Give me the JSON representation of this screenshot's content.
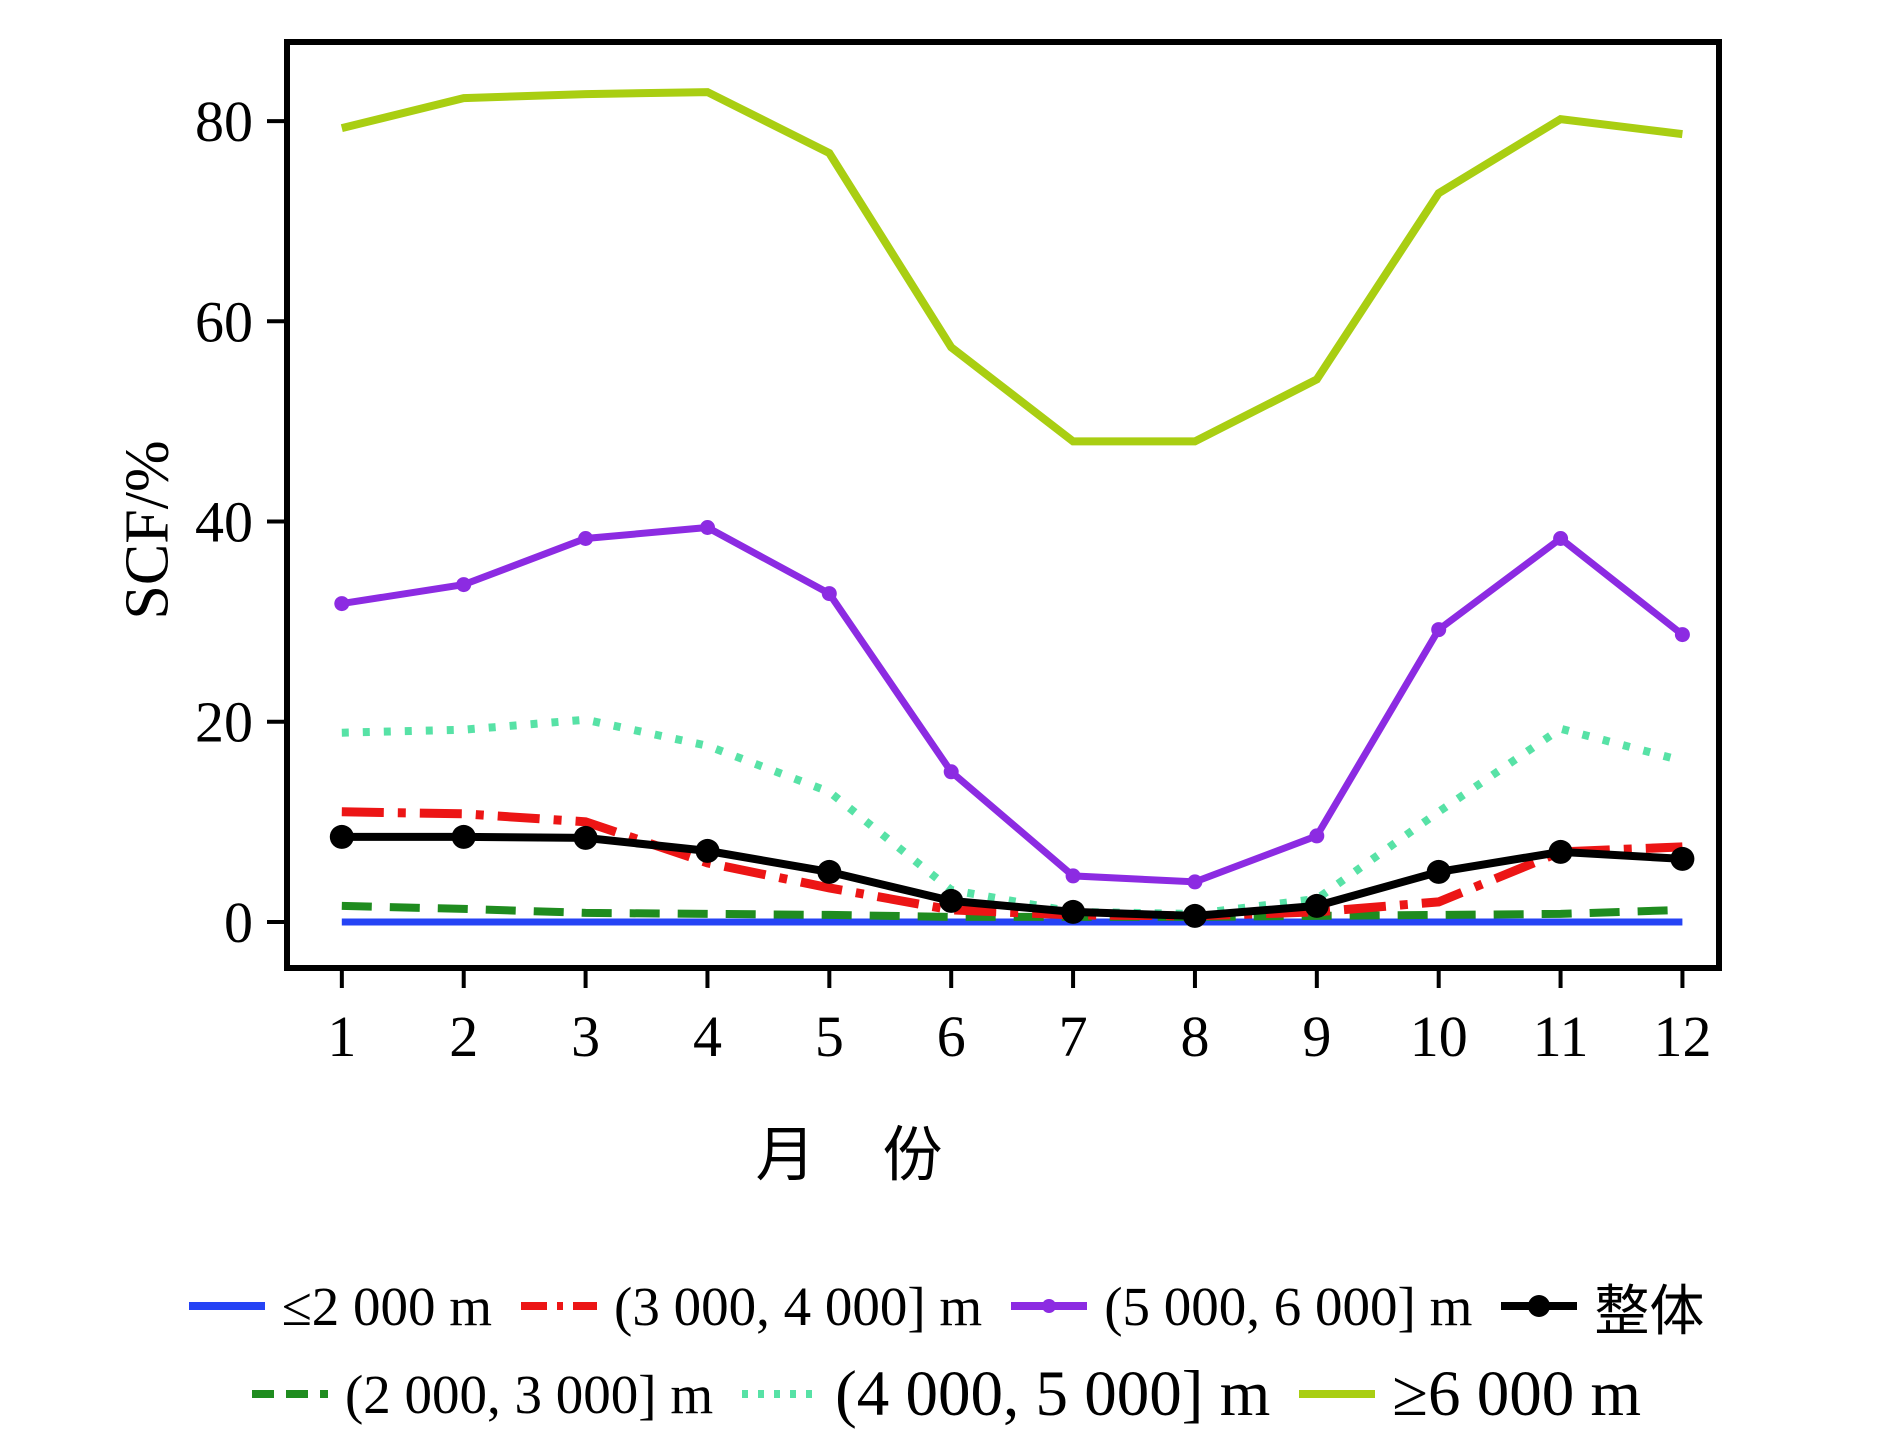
{
  "chart_data": {
    "type": "line",
    "title": "",
    "xlabel": "月 份",
    "ylabel": "SCF/%",
    "x": [
      1,
      2,
      3,
      4,
      5,
      6,
      7,
      8,
      9,
      10,
      11,
      12
    ],
    "x_ticks": [
      1,
      2,
      3,
      4,
      5,
      6,
      7,
      8,
      9,
      10,
      11,
      12
    ],
    "y_ticks": [
      0,
      20,
      40,
      60,
      80
    ],
    "xlim": [
      0.55,
      12.3
    ],
    "ylim": [
      -4.6,
      87.9
    ],
    "grid": false,
    "legend_position": "below-chart, two rows",
    "series": [
      {
        "key": "le-2000m",
        "name": "≤2 000 m",
        "color": "#2543f5",
        "style": "solid",
        "marker": "none",
        "values": [
          0,
          0,
          0,
          0,
          0,
          0,
          0,
          0,
          0,
          0,
          0,
          0
        ]
      },
      {
        "key": "2000-3000m",
        "name": "(2 000, 3 000] m",
        "color": "#1f8c1f",
        "style": "dashed",
        "marker": "none",
        "values": [
          1.6,
          1.3,
          0.9,
          0.8,
          0.7,
          0.5,
          0.5,
          0.5,
          0.6,
          0.7,
          0.8,
          1.2
        ]
      },
      {
        "key": "3000-4000m",
        "name": "(3 000, 4 000] m",
        "color": "#ec1515",
        "style": "dashdot",
        "marker": "none",
        "values": [
          11,
          10.8,
          10,
          5.9,
          3.4,
          1.2,
          0.7,
          0.6,
          1,
          2,
          7,
          7.5
        ]
      },
      {
        "key": "4000-5000m",
        "name": "(4 000, 5 000] m",
        "color": "#57e2a6",
        "style": "dotted",
        "marker": "none",
        "values": [
          18.9,
          19.2,
          20.2,
          17.6,
          13,
          3.2,
          1,
          0.8,
          2.3,
          11,
          19.3,
          16.1
        ]
      },
      {
        "key": "5000-6000m",
        "name": "(5 000, 6 000] m",
        "color": "#8c2be2",
        "style": "solid",
        "marker": "dot-small",
        "values": [
          31.8,
          33.7,
          38.3,
          39.4,
          32.8,
          15,
          4.6,
          4,
          8.6,
          29.2,
          38.3,
          28.7
        ]
      },
      {
        "key": "ge-6000m",
        "name": "≥6 000 m",
        "color": "#a9ce12",
        "style": "solid",
        "marker": "none",
        "values": [
          79.3,
          82.3,
          82.7,
          82.9,
          76.8,
          57.4,
          48,
          48,
          54.2,
          72.8,
          80.2,
          78.7
        ]
      },
      {
        "key": "overall",
        "name": "整体",
        "color": "#000000",
        "style": "solid",
        "marker": "dot-large",
        "values": [
          8.5,
          8.5,
          8.4,
          7.1,
          5,
          2.1,
          1,
          0.6,
          1.6,
          5,
          7,
          6.3
        ]
      }
    ]
  }
}
